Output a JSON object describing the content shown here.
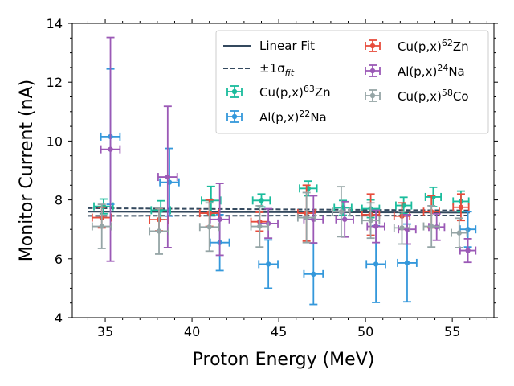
{
  "chart_data": {
    "type": "scatter",
    "xlabel": "Proton Energy (MeV)",
    "ylabel": "Monitor Current (nA)",
    "xlim": [
      33.1,
      57.4
    ],
    "ylim": [
      4,
      14
    ],
    "xticks": [
      35,
      40,
      45,
      50,
      55
    ],
    "yticks": [
      4,
      6,
      8,
      10,
      12,
      14
    ],
    "legend_position": "top-right",
    "fit": {
      "label": "Linear Fit",
      "band_label_prefix": "±1σ",
      "band_label_sub": "fit",
      "color": "#34495e",
      "x_range": [
        34.0,
        56.0
      ],
      "center": [
        7.6,
        7.57
      ],
      "upper": [
        7.72,
        7.64
      ],
      "lower": [
        7.46,
        7.47
      ]
    },
    "series": [
      {
        "name_base": "Cu(p,x)",
        "name_sup": "63",
        "name_suffix": "Zn",
        "color": "#1abc9c",
        "points": [
          {
            "x": 34.9,
            "y": 7.78,
            "xerr": 0.55,
            "yerr": 0.25
          },
          {
            "x": 38.2,
            "y": 7.65,
            "xerr": 0.55,
            "yerr": 0.32
          },
          {
            "x": 41.1,
            "y": 7.98,
            "xerr": 0.55,
            "yerr": 0.48
          },
          {
            "x": 44.0,
            "y": 7.98,
            "xerr": 0.5,
            "yerr": 0.22
          },
          {
            "x": 46.7,
            "y": 8.39,
            "xerr": 0.5,
            "yerr": 0.25
          },
          {
            "x": 48.7,
            "y": 7.73,
            "xerr": 0.5,
            "yerr": 0.25
          },
          {
            "x": 50.3,
            "y": 7.7,
            "xerr": 0.5,
            "yerr": 0.3
          },
          {
            "x": 52.2,
            "y": 7.81,
            "xerr": 0.45,
            "yerr": 0.28
          },
          {
            "x": 53.9,
            "y": 8.1,
            "xerr": 0.45,
            "yerr": 0.33
          },
          {
            "x": 55.5,
            "y": 7.95,
            "xerr": 0.45,
            "yerr": 0.35
          }
        ]
      },
      {
        "name_base": "Al(p,x)",
        "name_sup": "22",
        "name_suffix": "Na",
        "color": "#3498db",
        "points": [
          {
            "x": 35.3,
            "y": 10.15,
            "xerr": 0.55,
            "yerr": 2.3
          },
          {
            "x": 38.7,
            "y": 8.6,
            "xerr": 0.55,
            "yerr": 1.15
          },
          {
            "x": 41.6,
            "y": 6.55,
            "xerr": 0.55,
            "yerr": 0.95
          },
          {
            "x": 44.4,
            "y": 5.82,
            "xerr": 0.55,
            "yerr": 0.82
          },
          {
            "x": 47.0,
            "y": 5.48,
            "xerr": 0.55,
            "yerr": 1.03
          },
          {
            "x": 50.6,
            "y": 5.82,
            "xerr": 0.55,
            "yerr": 1.3
          },
          {
            "x": 52.4,
            "y": 5.86,
            "xerr": 0.55,
            "yerr": 1.32
          },
          {
            "x": 55.9,
            "y": 7.0,
            "xerr": 0.45,
            "yerr": 0.6
          }
        ]
      },
      {
        "name_base": "Cu(p,x)",
        "name_sup": "62",
        "name_suffix": "Zn",
        "color": "#e74c3c",
        "points": [
          {
            "x": 34.8,
            "y": 7.4,
            "xerr": 0.55,
            "yerr": 0.35
          },
          {
            "x": 38.1,
            "y": 7.33,
            "xerr": 0.55,
            "yerr": 0.38
          },
          {
            "x": 41.0,
            "y": 7.55,
            "xerr": 0.55,
            "yerr": 0.45
          },
          {
            "x": 43.9,
            "y": 7.26,
            "xerr": 0.5,
            "yerr": 0.32
          },
          {
            "x": 46.6,
            "y": 7.55,
            "xerr": 0.5,
            "yerr": 0.95
          },
          {
            "x": 50.3,
            "y": 7.5,
            "xerr": 0.5,
            "yerr": 0.7
          },
          {
            "x": 52.1,
            "y": 7.45,
            "xerr": 0.45,
            "yerr": 0.45
          },
          {
            "x": 53.8,
            "y": 7.6,
            "xerr": 0.45,
            "yerr": 0.55
          },
          {
            "x": 55.5,
            "y": 7.75,
            "xerr": 0.45,
            "yerr": 0.45
          }
        ]
      },
      {
        "name_base": "Al(p,x)",
        "name_sup": "24",
        "name_suffix": "Na",
        "color": "#9b59b6",
        "points": [
          {
            "x": 35.3,
            "y": 9.72,
            "xerr": 0.55,
            "yerr": 3.8
          },
          {
            "x": 38.6,
            "y": 8.78,
            "xerr": 0.55,
            "yerr": 2.4
          },
          {
            "x": 41.6,
            "y": 7.34,
            "xerr": 0.55,
            "yerr": 1.22
          },
          {
            "x": 44.4,
            "y": 7.2,
            "xerr": 0.55,
            "yerr": 0.5
          },
          {
            "x": 47.0,
            "y": 7.34,
            "xerr": 0.55,
            "yerr": 0.8
          },
          {
            "x": 48.8,
            "y": 7.34,
            "xerr": 0.5,
            "yerr": 0.6
          },
          {
            "x": 50.6,
            "y": 7.1,
            "xerr": 0.5,
            "yerr": 0.55
          },
          {
            "x": 52.4,
            "y": 7.0,
            "xerr": 0.5,
            "yerr": 0.5
          },
          {
            "x": 54.1,
            "y": 7.08,
            "xerr": 0.45,
            "yerr": 0.45
          },
          {
            "x": 55.9,
            "y": 6.28,
            "xerr": 0.45,
            "yerr": 0.4
          }
        ]
      },
      {
        "name_base": "Cu(p,x)",
        "name_sup": "58",
        "name_suffix": "Co",
        "color": "#95a5a6",
        "points": [
          {
            "x": 34.8,
            "y": 7.1,
            "xerr": 0.55,
            "yerr": 0.75
          },
          {
            "x": 38.1,
            "y": 6.94,
            "xerr": 0.55,
            "yerr": 0.78
          },
          {
            "x": 41.0,
            "y": 7.08,
            "xerr": 0.55,
            "yerr": 0.82
          },
          {
            "x": 43.9,
            "y": 7.1,
            "xerr": 0.5,
            "yerr": 0.7
          },
          {
            "x": 46.6,
            "y": 7.4,
            "xerr": 0.5,
            "yerr": 0.85
          },
          {
            "x": 48.6,
            "y": 7.6,
            "xerr": 0.5,
            "yerr": 0.85
          },
          {
            "x": 50.3,
            "y": 7.3,
            "xerr": 0.5,
            "yerr": 0.6
          },
          {
            "x": 52.1,
            "y": 7.05,
            "xerr": 0.45,
            "yerr": 0.55
          },
          {
            "x": 53.8,
            "y": 7.1,
            "xerr": 0.45,
            "yerr": 0.7
          },
          {
            "x": 55.4,
            "y": 6.88,
            "xerr": 0.45,
            "yerr": 0.5
          }
        ]
      }
    ]
  }
}
